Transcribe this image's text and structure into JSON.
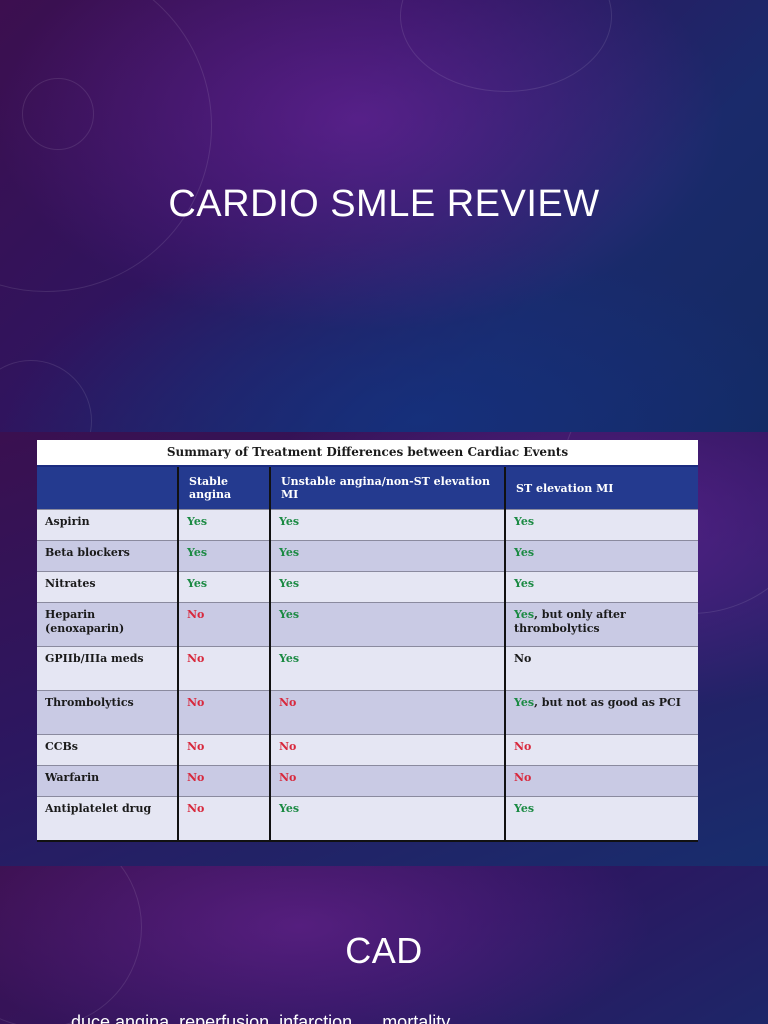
{
  "slides": {
    "title_slide": {
      "title": "CARDIO SMLE REVIEW"
    },
    "cad_slide": {
      "title": "CAD",
      "body_partial": "...duce angina, reperfusion, infarction, ... mortality..."
    }
  },
  "table": {
    "caption": "Summary of Treatment Differences between Cardiac Events",
    "headers": [
      "",
      "Stable angina",
      "Unstable angina/non-ST elevation MI",
      "ST elevation MI"
    ],
    "rows": [
      {
        "drug": "Aspirin",
        "stable": "Yes",
        "unstable": "Yes",
        "stemi": "Yes",
        "stemi_note": ""
      },
      {
        "drug": "Beta blockers",
        "stable": "Yes",
        "unstable": "Yes",
        "stemi": "Yes",
        "stemi_note": ""
      },
      {
        "drug": "Nitrates",
        "stable": "Yes",
        "unstable": "Yes",
        "stemi": "Yes",
        "stemi_note": ""
      },
      {
        "drug": "Heparin (enoxaparin)",
        "stable": "No",
        "unstable": "Yes",
        "stemi": "Yes",
        "stemi_note": ", but only after thrombolytics"
      },
      {
        "drug": "GPIIb/IIIa meds",
        "stable": "No",
        "unstable": "Yes",
        "stemi": "No",
        "stemi_note": ""
      },
      {
        "drug": "Thrombolytics",
        "stable": "No",
        "unstable": "No",
        "stemi": "Yes",
        "stemi_note": ", but not as good as PCI"
      },
      {
        "drug": "CCBs",
        "stable": "No",
        "unstable": "No",
        "stemi": "No",
        "stemi_note": ""
      },
      {
        "drug": "Warfarin",
        "stable": "No",
        "unstable": "No",
        "stemi": "No",
        "stemi_note": ""
      },
      {
        "drug": "Antiplatelet drug",
        "stable": "No",
        "unstable": "Yes",
        "stemi": "Yes",
        "stemi_note": ""
      }
    ]
  },
  "colors": {
    "yes": "#1b8a43",
    "no": "#d8283c",
    "header_bg": "#243a8f"
  }
}
